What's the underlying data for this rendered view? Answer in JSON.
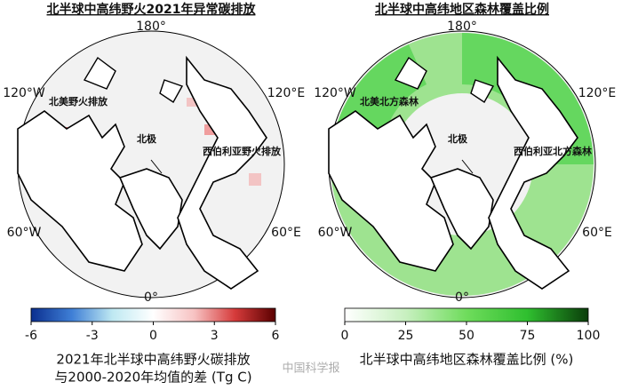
{
  "panels": [
    {
      "title": "北半球中高纬野火2021年异常碳排放",
      "longitude_labels": [
        "180°",
        "120°W",
        "120°E",
        "60°W",
        "60°E",
        "0°"
      ],
      "regions": [
        "北美野火排放",
        "北极",
        "西伯利亚野火排放"
      ],
      "colorbar": {
        "lim": [
          -6,
          6
        ],
        "ticks": [
          -6,
          -3,
          0,
          3,
          6
        ],
        "colors": [
          "#0b2f8f",
          "#3f7fd6",
          "#bfe9f2",
          "#ffffff",
          "#f7c3c3",
          "#d63b3b",
          "#5a0000"
        ],
        "label": [
          "2021年北半球中高纬野火碳排放",
          "与2000-2020年均值的差 (Tg C)"
        ]
      }
    },
    {
      "title": "北半球中高纬地区森林覆盖比例",
      "longitude_labels": [
        "180°",
        "120°W",
        "120°E",
        "60°W",
        "60°E",
        "0°"
      ],
      "regions": [
        "北美北方森林",
        "北极",
        "西伯利亚北方森林"
      ],
      "colorbar": {
        "lim": [
          0,
          100
        ],
        "ticks": [
          0,
          25,
          50,
          75,
          100
        ],
        "colors": [
          "#ffffff",
          "#c8f0c0",
          "#6fdc5c",
          "#2fbf2f",
          "#0a3d0a"
        ],
        "label": [
          "北半球中高纬地区森林覆盖比例 (%)"
        ]
      }
    }
  ],
  "watermark": "中国科学报"
}
